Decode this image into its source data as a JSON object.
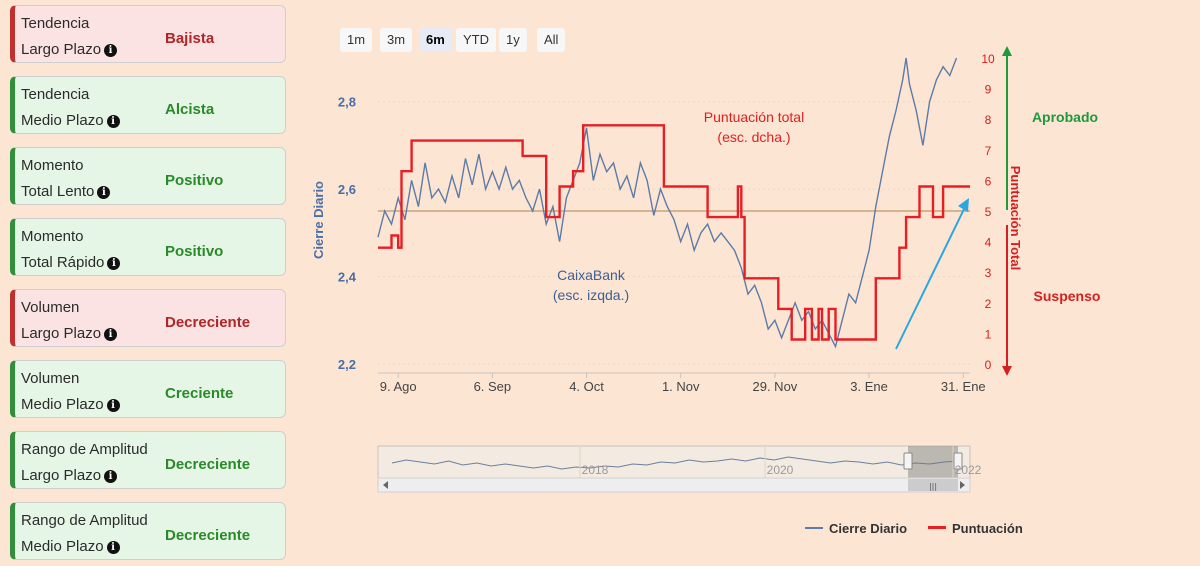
{
  "cards": [
    {
      "line1": "Tendencia",
      "line2": "Largo Plazo",
      "value": "Bajista",
      "status": "negative"
    },
    {
      "line1": "Tendencia",
      "line2": "Medio Plazo",
      "value": "Alcista",
      "status": "positive"
    },
    {
      "line1": "Momento",
      "line2": "Total Lento",
      "value": "Positivo",
      "status": "positive"
    },
    {
      "line1": "Momento",
      "line2": "Total Rápido",
      "value": "Positivo",
      "status": "positive"
    },
    {
      "line1": "Volumen",
      "line2": "Largo Plazo",
      "value": "Decreciente",
      "status": "negative"
    },
    {
      "line1": "Volumen",
      "line2": "Medio Plazo",
      "value": "Creciente",
      "status": "positive"
    },
    {
      "line1": "Rango de Amplitud",
      "line2": "Largo Plazo",
      "value": "Decreciente",
      "status": "positive"
    },
    {
      "line1": "Rango de Amplitud",
      "line2": "Medio Plazo",
      "value": "Decreciente",
      "status": "positive"
    }
  ],
  "range_selector": {
    "buttons": [
      "1m",
      "3m",
      "6m",
      "YTD",
      "1y",
      "All"
    ],
    "active": "6m"
  },
  "chart_data": {
    "type": "line",
    "ylabel_left": "Cierre Diario",
    "ylabel_right": "Puntuación Total",
    "ylim_left": [
      2.2,
      2.9
    ],
    "yticks_left": [
      "2,2",
      "2,4",
      "2,6",
      "2,8"
    ],
    "ylim_right": [
      0,
      10
    ],
    "yticks_right": [
      "0",
      "1",
      "2",
      "3",
      "4",
      "5",
      "6",
      "7",
      "8",
      "9",
      "10"
    ],
    "xlim": [
      0,
      176
    ],
    "xticks": [
      {
        "x": 6,
        "label": "9. Ago"
      },
      {
        "x": 34,
        "label": "6. Sep"
      },
      {
        "x": 62,
        "label": "4. Oct"
      },
      {
        "x": 90,
        "label": "1. Nov"
      },
      {
        "x": 118,
        "label": "29. Nov"
      },
      {
        "x": 146,
        "label": "3. Ene"
      },
      {
        "x": 174,
        "label": "31. Ene"
      }
    ],
    "threshold": {
      "value": 5,
      "color": "#d6b48e"
    },
    "labels": {
      "score_title_line1": "Puntuación total",
      "score_title_line2": "(esc. dcha.)",
      "price_title_line1": "CaixaBank",
      "price_title_line2": "(esc. izqda.)",
      "approved": "Aprobado",
      "failed": "Suspenso"
    },
    "series": [
      {
        "name": "Cierre Diario",
        "color": "#5c7ba8",
        "axis": "left",
        "points": [
          [
            0,
            2.49
          ],
          [
            2,
            2.55
          ],
          [
            4,
            2.52
          ],
          [
            6,
            2.58
          ],
          [
            8,
            2.53
          ],
          [
            10,
            2.62
          ],
          [
            12,
            2.56
          ],
          [
            14,
            2.66
          ],
          [
            16,
            2.58
          ],
          [
            18,
            2.6
          ],
          [
            20,
            2.57
          ],
          [
            22,
            2.63
          ],
          [
            24,
            2.58
          ],
          [
            26,
            2.67
          ],
          [
            28,
            2.61
          ],
          [
            30,
            2.68
          ],
          [
            32,
            2.6
          ],
          [
            34,
            2.64
          ],
          [
            36,
            2.6
          ],
          [
            38,
            2.65
          ],
          [
            40,
            2.6
          ],
          [
            42,
            2.62
          ],
          [
            44,
            2.58
          ],
          [
            46,
            2.55
          ],
          [
            48,
            2.6
          ],
          [
            50,
            2.52
          ],
          [
            52,
            2.56
          ],
          [
            54,
            2.48
          ],
          [
            56,
            2.58
          ],
          [
            58,
            2.62
          ],
          [
            60,
            2.66
          ],
          [
            62,
            2.74
          ],
          [
            64,
            2.62
          ],
          [
            66,
            2.68
          ],
          [
            68,
            2.64
          ],
          [
            70,
            2.66
          ],
          [
            72,
            2.6
          ],
          [
            74,
            2.63
          ],
          [
            76,
            2.58
          ],
          [
            78,
            2.66
          ],
          [
            80,
            2.62
          ],
          [
            82,
            2.54
          ],
          [
            84,
            2.6
          ],
          [
            86,
            2.56
          ],
          [
            88,
            2.53
          ],
          [
            90,
            2.48
          ],
          [
            92,
            2.52
          ],
          [
            94,
            2.46
          ],
          [
            96,
            2.5
          ],
          [
            98,
            2.52
          ],
          [
            100,
            2.48
          ],
          [
            102,
            2.5
          ],
          [
            104,
            2.48
          ],
          [
            106,
            2.46
          ],
          [
            108,
            2.42
          ],
          [
            110,
            2.36
          ],
          [
            112,
            2.38
          ],
          [
            114,
            2.34
          ],
          [
            116,
            2.28
          ],
          [
            118,
            2.3
          ],
          [
            120,
            2.26
          ],
          [
            122,
            2.3
          ],
          [
            124,
            2.34
          ],
          [
            126,
            2.3
          ],
          [
            128,
            2.32
          ],
          [
            130,
            2.28
          ],
          [
            132,
            2.3
          ],
          [
            134,
            2.27
          ],
          [
            136,
            2.24
          ],
          [
            138,
            2.3
          ],
          [
            140,
            2.36
          ],
          [
            142,
            2.34
          ],
          [
            144,
            2.4
          ],
          [
            146,
            2.46
          ],
          [
            148,
            2.56
          ],
          [
            150,
            2.64
          ],
          [
            152,
            2.72
          ],
          [
            154,
            2.78
          ],
          [
            156,
            2.85
          ],
          [
            157,
            2.9
          ],
          [
            158,
            2.84
          ],
          [
            160,
            2.78
          ],
          [
            162,
            2.7
          ],
          [
            164,
            2.8
          ],
          [
            166,
            2.85
          ],
          [
            168,
            2.88
          ],
          [
            170,
            2.86
          ],
          [
            172,
            2.9
          ]
        ]
      },
      {
        "name": "Puntuación",
        "color": "#e81e25",
        "axis": "right",
        "points": [
          [
            0,
            3.8
          ],
          [
            4,
            3.8
          ],
          [
            4,
            4.2
          ],
          [
            6,
            4.2
          ],
          [
            6,
            3.8
          ],
          [
            7,
            3.8
          ],
          [
            7,
            6.3
          ],
          [
            10,
            6.3
          ],
          [
            10,
            7.3
          ],
          [
            43,
            7.3
          ],
          [
            43,
            6.8
          ],
          [
            50,
            6.8
          ],
          [
            50,
            4.8
          ],
          [
            54,
            4.8
          ],
          [
            54,
            5.8
          ],
          [
            58,
            5.8
          ],
          [
            58,
            6.3
          ],
          [
            61,
            6.3
          ],
          [
            61,
            7.8
          ],
          [
            85,
            7.8
          ],
          [
            85,
            5.8
          ],
          [
            98,
            5.8
          ],
          [
            98,
            4.8
          ],
          [
            107,
            4.8
          ],
          [
            107,
            5.8
          ],
          [
            108,
            5.8
          ],
          [
            108,
            4.8
          ],
          [
            109,
            4.8
          ],
          [
            109,
            2.8
          ],
          [
            119,
            2.8
          ],
          [
            119,
            1.8
          ],
          [
            123,
            1.8
          ],
          [
            123,
            0.8
          ],
          [
            127,
            0.8
          ],
          [
            127,
            1.8
          ],
          [
            129,
            1.8
          ],
          [
            129,
            0.8
          ],
          [
            131,
            0.8
          ],
          [
            131,
            1.8
          ],
          [
            132,
            1.8
          ],
          [
            132,
            0.8
          ],
          [
            134,
            0.8
          ],
          [
            134,
            1.8
          ],
          [
            136,
            1.8
          ],
          [
            136,
            0.8
          ],
          [
            148,
            0.8
          ],
          [
            148,
            2.8
          ],
          [
            155,
            2.8
          ],
          [
            155,
            3.8
          ],
          [
            157,
            3.8
          ],
          [
            157,
            4.8
          ],
          [
            161,
            4.8
          ],
          [
            161,
            5.8
          ],
          [
            165,
            5.8
          ],
          [
            165,
            4.8
          ],
          [
            168,
            4.8
          ],
          [
            168,
            5.8
          ],
          [
            176,
            5.8
          ]
        ]
      }
    ],
    "navigator": {
      "tick_labels": [
        "2018",
        "2020",
        "2022"
      ],
      "points": [
        [
          0,
          0.45
        ],
        [
          3,
          0.6
        ],
        [
          6,
          0.5
        ],
        [
          9,
          0.4
        ],
        [
          12,
          0.55
        ],
        [
          15,
          0.35
        ],
        [
          18,
          0.45
        ],
        [
          21,
          0.3
        ],
        [
          24,
          0.4
        ],
        [
          27,
          0.3
        ],
        [
          30,
          0.2
        ],
        [
          33,
          0.3
        ],
        [
          36,
          0.15
        ],
        [
          39,
          0.25
        ],
        [
          42,
          0.2
        ],
        [
          45,
          0.3
        ],
        [
          48,
          0.25
        ],
        [
          51,
          0.4
        ],
        [
          54,
          0.35
        ],
        [
          57,
          0.5
        ],
        [
          60,
          0.45
        ],
        [
          63,
          0.6
        ],
        [
          66,
          0.5
        ],
        [
          69,
          0.55
        ],
        [
          72,
          0.65
        ],
        [
          75,
          0.55
        ],
        [
          78,
          0.7
        ],
        [
          81,
          0.6
        ],
        [
          84,
          0.75
        ],
        [
          87,
          0.65
        ],
        [
          90,
          0.55
        ],
        [
          93,
          0.45
        ],
        [
          96,
          0.55
        ],
        [
          99,
          0.5
        ],
        [
          102,
          0.4
        ],
        [
          105,
          0.5
        ],
        [
          108,
          0.35
        ],
        [
          111,
          0.45
        ],
        [
          114,
          0.4
        ],
        [
          117,
          0.5
        ],
        [
          120,
          0.55
        ]
      ]
    }
  },
  "legend": [
    {
      "label": "Cierre Diario",
      "color": "#5c7ba8"
    },
    {
      "label": "Puntuación",
      "color": "#e81e25"
    }
  ]
}
